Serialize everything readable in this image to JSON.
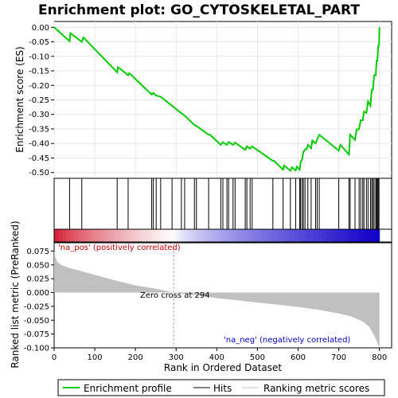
{
  "chart_data": {
    "type": "line",
    "title": "Enrichment plot: GO_CYTOSKELETAL_PART",
    "es_panel": {
      "ylabel": "Enrichment score (ES)",
      "ylim": [
        -0.52,
        0.02
      ],
      "yticks": [
        "0.00",
        "-0.05",
        "-0.10",
        "-0.15",
        "-0.20",
        "-0.25",
        "-0.30",
        "-0.35",
        "-0.40",
        "-0.45",
        "-0.50"
      ],
      "ytick_values": [
        0,
        -0.05,
        -0.1,
        -0.15,
        -0.2,
        -0.25,
        -0.3,
        -0.35,
        -0.4,
        -0.45,
        -0.5
      ],
      "series_color": "#00cc00",
      "points": [
        [
          0,
          0.0
        ],
        [
          38,
          -0.048
        ],
        [
          40,
          -0.02
        ],
        [
          68,
          -0.05
        ],
        [
          72,
          -0.035
        ],
        [
          155,
          -0.155
        ],
        [
          157,
          -0.137
        ],
        [
          182,
          -0.165
        ],
        [
          185,
          -0.158
        ],
        [
          240,
          -0.232
        ],
        [
          244,
          -0.226
        ],
        [
          251,
          -0.235
        ],
        [
          262,
          -0.239
        ],
        [
          290,
          -0.27
        ],
        [
          313,
          -0.296
        ],
        [
          321,
          -0.304
        ],
        [
          345,
          -0.337
        ],
        [
          350,
          -0.34
        ],
        [
          380,
          -0.37
        ],
        [
          383,
          -0.37
        ],
        [
          410,
          -0.405
        ],
        [
          415,
          -0.396
        ],
        [
          425,
          -0.405
        ],
        [
          429,
          -0.395
        ],
        [
          440,
          -0.405
        ],
        [
          445,
          -0.397
        ],
        [
          470,
          -0.422
        ],
        [
          474,
          -0.41
        ],
        [
          482,
          -0.418
        ],
        [
          487,
          -0.41
        ],
        [
          538,
          -0.46
        ],
        [
          541,
          -0.46
        ],
        [
          563,
          -0.49
        ],
        [
          566,
          -0.476
        ],
        [
          581,
          -0.494
        ],
        [
          585,
          -0.482
        ],
        [
          594,
          -0.493
        ],
        [
          597,
          -0.48
        ],
        [
          604,
          -0.49
        ],
        [
          606,
          -0.466
        ],
        [
          610,
          -0.454
        ],
        [
          613,
          -0.43
        ],
        [
          617,
          -0.42
        ],
        [
          621,
          -0.42
        ],
        [
          624,
          -0.405
        ],
        [
          632,
          -0.416
        ],
        [
          635,
          -0.39
        ],
        [
          643,
          -0.4
        ],
        [
          647,
          -0.386
        ],
        [
          652,
          -0.37
        ],
        [
          700,
          -0.425
        ],
        [
          704,
          -0.405
        ],
        [
          725,
          -0.438
        ],
        [
          728,
          -0.37
        ],
        [
          740,
          -0.388
        ],
        [
          744,
          -0.352
        ],
        [
          750,
          -0.35
        ],
        [
          754,
          -0.32
        ],
        [
          759,
          -0.32
        ],
        [
          762,
          -0.29
        ],
        [
          768,
          -0.295
        ],
        [
          772,
          -0.255
        ],
        [
          778,
          -0.27
        ],
        [
          781,
          -0.215
        ],
        [
          784,
          -0.215
        ],
        [
          787,
          -0.165
        ],
        [
          791,
          -0.165
        ],
        [
          793,
          -0.115
        ],
        [
          795,
          -0.115
        ],
        [
          797,
          -0.065
        ],
        [
          799,
          -0.06
        ],
        [
          800,
          0.0
        ]
      ]
    },
    "hits": [
      38,
      68,
      155,
      182,
      240,
      244,
      251,
      262,
      290,
      313,
      321,
      345,
      350,
      380,
      410,
      415,
      425,
      429,
      440,
      445,
      470,
      474,
      482,
      487,
      538,
      563,
      581,
      594,
      604,
      606,
      610,
      613,
      617,
      624,
      632,
      643,
      647,
      652,
      700,
      725,
      728,
      740,
      750,
      754,
      759,
      762,
      768,
      772,
      778,
      781,
      784,
      787,
      791,
      793,
      795,
      797,
      799
    ],
    "metric_panel": {
      "ylabel": "Ranked list metric (PreRanked)",
      "ylim": [
        -0.1,
        0.09
      ],
      "yticks": [
        "0.075",
        "0.050",
        "0.025",
        "0.000",
        "-0.025",
        "-0.050",
        "-0.075",
        "-0.100"
      ],
      "ytick_values": [
        0.075,
        0.05,
        0.025,
        0.0,
        -0.025,
        -0.05,
        -0.075,
        -0.1
      ],
      "curve": [
        [
          0,
          0.075
        ],
        [
          3,
          0.065
        ],
        [
          8,
          0.055
        ],
        [
          20,
          0.049
        ],
        [
          40,
          0.044
        ],
        [
          70,
          0.038
        ],
        [
          100,
          0.032
        ],
        [
          150,
          0.022
        ],
        [
          200,
          0.013
        ],
        [
          250,
          0.007
        ],
        [
          294,
          0.0
        ],
        [
          350,
          -0.005
        ],
        [
          400,
          -0.01
        ],
        [
          450,
          -0.014
        ],
        [
          500,
          -0.018
        ],
        [
          550,
          -0.022
        ],
        [
          600,
          -0.026
        ],
        [
          650,
          -0.031
        ],
        [
          700,
          -0.038
        ],
        [
          730,
          -0.043
        ],
        [
          760,
          -0.053
        ],
        [
          775,
          -0.062
        ],
        [
          785,
          -0.075
        ],
        [
          792,
          -0.085
        ],
        [
          797,
          -0.095
        ],
        [
          800,
          -0.1
        ]
      ],
      "fill_color": "#c0c0c0",
      "zero_cross_label": "Zero cross at 294",
      "zero_cross": 294,
      "pos_label": "'na_pos' (positively correlated)",
      "neg_label": "'na_neg' (negatively correlated)",
      "pos_color": "#cc0000",
      "neg_color": "#0000cc"
    },
    "xlabel": "Rank in Ordered Dataset",
    "xlim": [
      0,
      830
    ],
    "xticks": [
      "0",
      "100",
      "200",
      "300",
      "400",
      "500",
      "600",
      "700",
      "800"
    ],
    "xtick_values": [
      0,
      100,
      200,
      300,
      400,
      500,
      600,
      700,
      800
    ],
    "n_genes": 800,
    "legend": [
      {
        "label": "Enrichment profile",
        "kind": "line",
        "color": "#00cc00"
      },
      {
        "label": "Hits",
        "kind": "line",
        "color": "#000000"
      },
      {
        "label": "Ranking metric scores",
        "kind": "line",
        "color": "#c0c0c0"
      }
    ]
  }
}
